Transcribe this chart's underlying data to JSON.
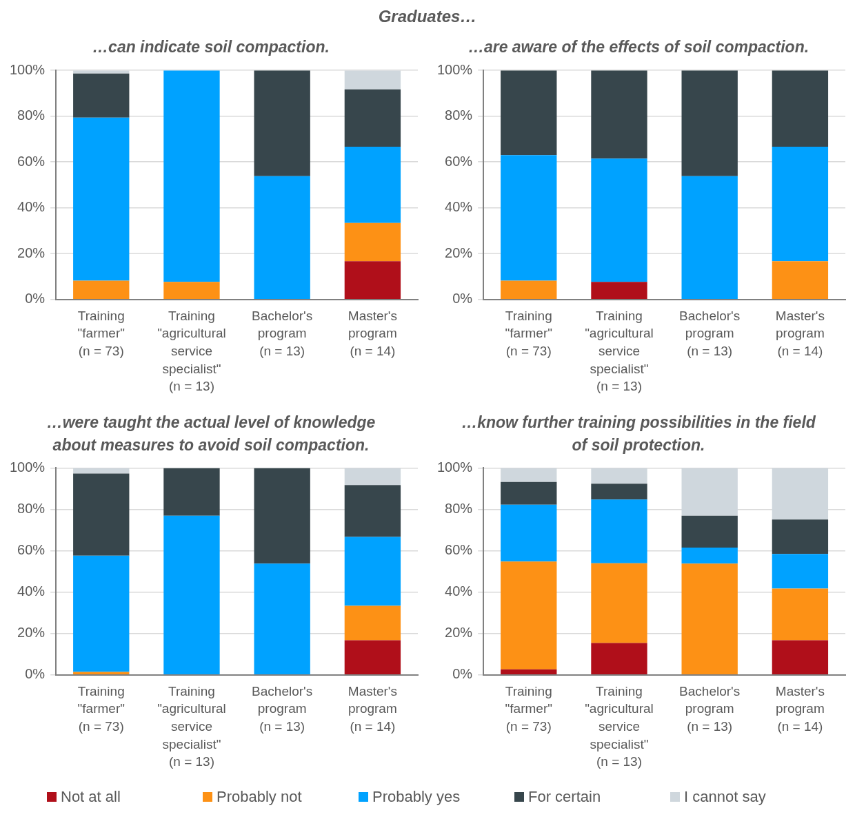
{
  "chart_data": [
    {
      "type": "bar",
      "stacked": true,
      "annotations": [
        "Graduates…"
      ],
      "title": "…can indicate soil compaction.",
      "legend": "bottom",
      "categories": [
        "Training \"farmer\" (n = 73)",
        "Training \"agricultural service specialist\" (n = 13)",
        "Bachelor's program (n = 13)",
        "Master's program (n = 14)"
      ],
      "series": [
        {
          "name": "Not at all",
          "color": "#b00f1a",
          "values": [
            0,
            0,
            0,
            16.7
          ]
        },
        {
          "name": "Probably not",
          "color": "#fd9115",
          "values": [
            8.2,
            7.7,
            0,
            16.7
          ]
        },
        {
          "name": "Probably yes",
          "color": "#00a2ff",
          "values": [
            71.2,
            92.3,
            53.8,
            33.3
          ]
        },
        {
          "name": "For certain",
          "color": "#37464c",
          "values": [
            19.2,
            0,
            46.2,
            25
          ]
        },
        {
          "name": "I cannot say",
          "color": "#cfd7dd",
          "values": [
            1.4,
            0,
            0,
            8.3
          ]
        }
      ],
      "ylim": [
        0,
        100
      ],
      "yticks": [
        {
          "value": 0,
          "label": "0%"
        },
        {
          "value": 20,
          "label": "20%"
        },
        {
          "value": 40,
          "label": "40%"
        },
        {
          "value": 60,
          "label": "60%"
        },
        {
          "value": 80,
          "label": "80%"
        },
        {
          "value": 100,
          "label": "100%"
        }
      ],
      "grid": "y"
    },
    {
      "type": "bar",
      "stacked": true,
      "title": "…are aware of the effects of soil compaction.",
      "categories": [
        "Training \"farmer\" (n = 73)",
        "Training \"agricultural service specialist\" (n = 13)",
        "Bachelor's program (n = 13)",
        "Master's program (n = 14)"
      ],
      "series": [
        {
          "color": "#b00f1a",
          "values": [
            0,
            7.7,
            0,
            0
          ]
        },
        {
          "color": "#fd9115",
          "values": [
            8.2,
            0,
            0,
            16.7
          ]
        },
        {
          "color": "#00a2ff",
          "values": [
            54.8,
            53.8,
            53.8,
            50
          ]
        },
        {
          "color": "#37464c",
          "values": [
            37,
            38.5,
            46.2,
            33.3
          ]
        },
        {
          "color": "#cfd7dd",
          "values": [
            0,
            0,
            0,
            0
          ]
        }
      ],
      "ylim": [
        0,
        100
      ],
      "yticks": [
        {
          "value": 0,
          "label": "0%"
        },
        {
          "value": 20,
          "label": "20%"
        },
        {
          "value": 40,
          "label": "40%"
        },
        {
          "value": 60,
          "label": "60%"
        },
        {
          "value": 80,
          "label": "80%"
        },
        {
          "value": 100,
          "label": "100%"
        }
      ],
      "grid": "y"
    },
    {
      "type": "bar",
      "stacked": true,
      "title": "…were taught the actual level of knowledge about measures to avoid soil compaction.",
      "categories": [
        "Training \"farmer\" (n = 73)",
        "Training \"agricultural service specialist\" (n = 13)",
        "Bachelor's program (n = 13)",
        "Master's program (n = 14)"
      ],
      "series": [
        {
          "color": "#b00f1a",
          "values": [
            0,
            0,
            0,
            16.7
          ]
        },
        {
          "color": "#fd9115",
          "values": [
            1.4,
            0,
            0,
            16.7
          ]
        },
        {
          "color": "#00a2ff",
          "values": [
            56.2,
            76.9,
            53.8,
            33.3
          ]
        },
        {
          "color": "#37464c",
          "values": [
            39.7,
            23.1,
            46.2,
            25
          ]
        },
        {
          "color": "#cfd7dd",
          "values": [
            2.7,
            0,
            0,
            8.3
          ]
        }
      ],
      "ylim": [
        0,
        100
      ],
      "yticks": [
        {
          "value": 0,
          "label": "0%"
        },
        {
          "value": 20,
          "label": "20%"
        },
        {
          "value": 40,
          "label": "40%"
        },
        {
          "value": 60,
          "label": "60%"
        },
        {
          "value": 80,
          "label": "80%"
        },
        {
          "value": 100,
          "label": "100%"
        }
      ],
      "grid": "y"
    },
    {
      "type": "bar",
      "stacked": true,
      "title": "…know further training possibilities in the field of soil protection.",
      "categories": [
        "Training \"farmer\" (n = 73)",
        "Training \"agricultural service specialist\" (n = 13)",
        "Bachelor's program (n = 13)",
        "Master's program (n = 14)"
      ],
      "series": [
        {
          "color": "#b00f1a",
          "values": [
            2.7,
            15.4,
            0,
            16.7
          ]
        },
        {
          "color": "#fd9115",
          "values": [
            52.1,
            38.5,
            53.8,
            25
          ]
        },
        {
          "color": "#00a2ff",
          "values": [
            27.4,
            30.8,
            7.7,
            16.7
          ]
        },
        {
          "color": "#37464c",
          "values": [
            11,
            7.7,
            15.4,
            16.7
          ]
        },
        {
          "color": "#cfd7dd",
          "values": [
            6.8,
            7.7,
            23.1,
            25
          ]
        }
      ],
      "ylim": [
        0,
        100
      ],
      "yticks": [
        {
          "value": 0,
          "label": "0%"
        },
        {
          "value": 20,
          "label": "20%"
        },
        {
          "value": 40,
          "label": "40%"
        },
        {
          "value": 60,
          "label": "60%"
        },
        {
          "value": 80,
          "label": "80%"
        },
        {
          "value": 100,
          "label": "100%"
        }
      ],
      "grid": "y"
    }
  ]
}
